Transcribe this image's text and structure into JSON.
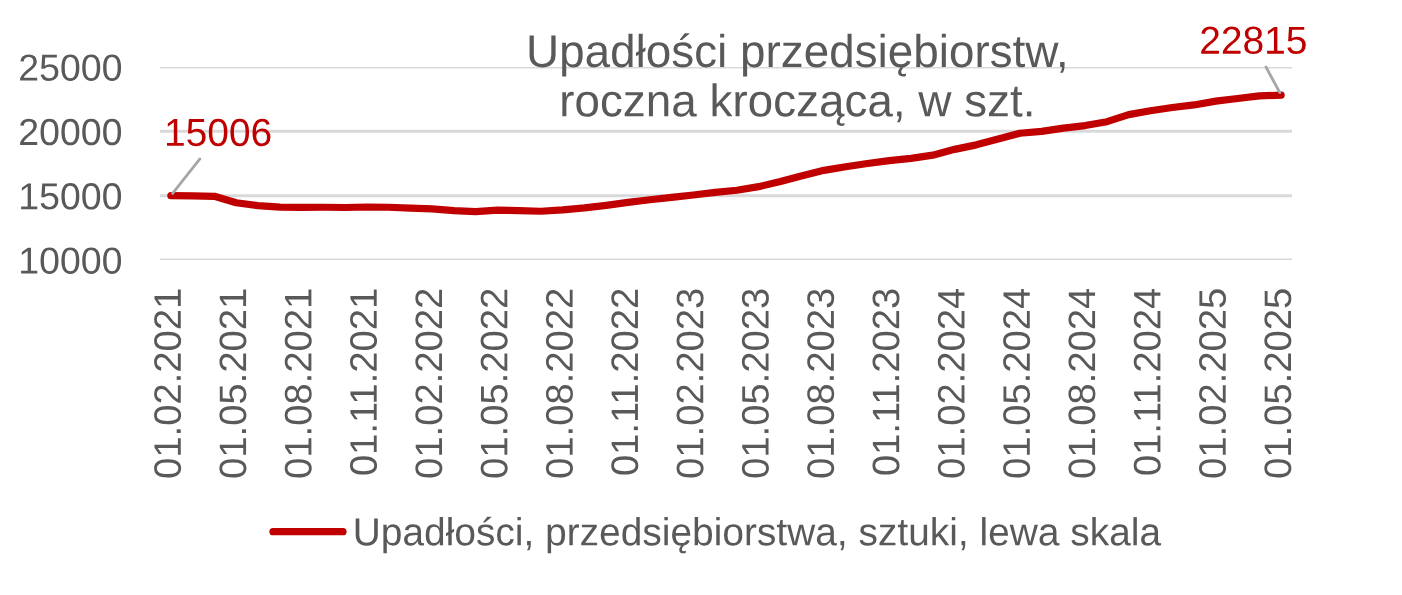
{
  "chart_data": {
    "type": "line",
    "title": "Upadłości przedsiębiorstw,\nroczna krocząca, w szt.",
    "categories": [
      "01.02.2021",
      null,
      null,
      "01.05.2021",
      null,
      null,
      "01.08.2021",
      null,
      null,
      "01.11.2021",
      null,
      null,
      "01.02.2022",
      null,
      null,
      "01.05.2022",
      null,
      null,
      "01.08.2022",
      null,
      null,
      "01.11.2022",
      null,
      null,
      "01.02.2023",
      null,
      null,
      "01.05.2023",
      null,
      null,
      "01.08.2023",
      null,
      null,
      "01.11.2023",
      null,
      null,
      "01.02.2024",
      null,
      null,
      "01.05.2024",
      null,
      null,
      "01.08.2024",
      null,
      null,
      "01.11.2024",
      null,
      null,
      "01.02.2025",
      null,
      null,
      "01.05.2025"
    ],
    "series": [
      {
        "name": "Upadłości, przedsiębiorstwa, sztuki, lewa skala",
        "color": "#c00000",
        "values": [
          15006,
          14980,
          14950,
          14450,
          14220,
          14110,
          14090,
          14100,
          14080,
          14120,
          14100,
          14030,
          13970,
          13840,
          13760,
          13880,
          13840,
          13790,
          13900,
          14050,
          14250,
          14480,
          14680,
          14870,
          15050,
          15250,
          15420,
          15700,
          16100,
          16550,
          16970,
          17250,
          17500,
          17720,
          17900,
          18150,
          18600,
          18950,
          19400,
          19850,
          20000,
          20250,
          20450,
          20750,
          21300,
          21600,
          21850,
          22050,
          22350,
          22550,
          22750,
          22815
        ],
        "value_labels": [
          "15006",
          null,
          null,
          null,
          null,
          null,
          null,
          null,
          null,
          null,
          null,
          null,
          null,
          null,
          null,
          null,
          null,
          null,
          null,
          null,
          null,
          null,
          null,
          null,
          null,
          null,
          null,
          null,
          null,
          null,
          null,
          null,
          null,
          null,
          null,
          null,
          null,
          null,
          null,
          null,
          null,
          null,
          null,
          null,
          null,
          null,
          null,
          null,
          null,
          null,
          null,
          "22815"
        ]
      }
    ],
    "ylim": [
      10000,
      25000
    ],
    "yticks": [
      10000,
      15000,
      20000,
      25000
    ],
    "grid": "y",
    "legend": "bottom",
    "marker": "none",
    "line_style": "solid"
  }
}
